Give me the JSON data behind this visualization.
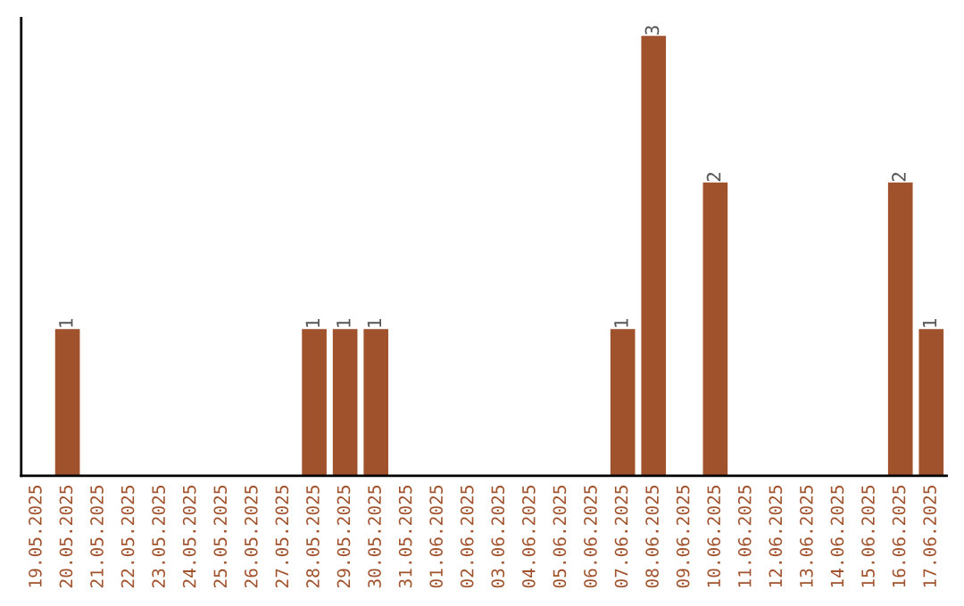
{
  "chart_data": {
    "type": "bar",
    "categories": [
      "19.05.2025",
      "20.05.2025",
      "21.05.2025",
      "22.05.2025",
      "23.05.2025",
      "24.05.2025",
      "25.05.2025",
      "26.05.2025",
      "27.05.2025",
      "28.05.2025",
      "29.05.2025",
      "30.05.2025",
      "31.05.2025",
      "01.06.2025",
      "02.06.2025",
      "03.06.2025",
      "04.06.2025",
      "05.06.2025",
      "06.06.2025",
      "07.06.2025",
      "08.06.2025",
      "09.06.2025",
      "10.06.2025",
      "11.06.2025",
      "12.06.2025",
      "13.06.2025",
      "14.06.2025",
      "15.06.2025",
      "16.06.2025",
      "17.06.2025"
    ],
    "values": [
      0,
      1,
      0,
      0,
      0,
      0,
      0,
      0,
      0,
      1,
      1,
      1,
      0,
      0,
      0,
      0,
      0,
      0,
      0,
      1,
      3,
      0,
      2,
      0,
      0,
      0,
      0,
      0,
      2,
      1
    ],
    "value_labels": [
      null,
      "1",
      null,
      null,
      null,
      null,
      null,
      null,
      null,
      "1",
      "1",
      "1",
      null,
      null,
      null,
      null,
      null,
      null,
      null,
      "1",
      "3",
      null,
      "2",
      null,
      null,
      null,
      null,
      null,
      "2",
      "1"
    ],
    "color": "#a0522d",
    "tick_labels": "x",
    "grid": false,
    "legend": false
  }
}
